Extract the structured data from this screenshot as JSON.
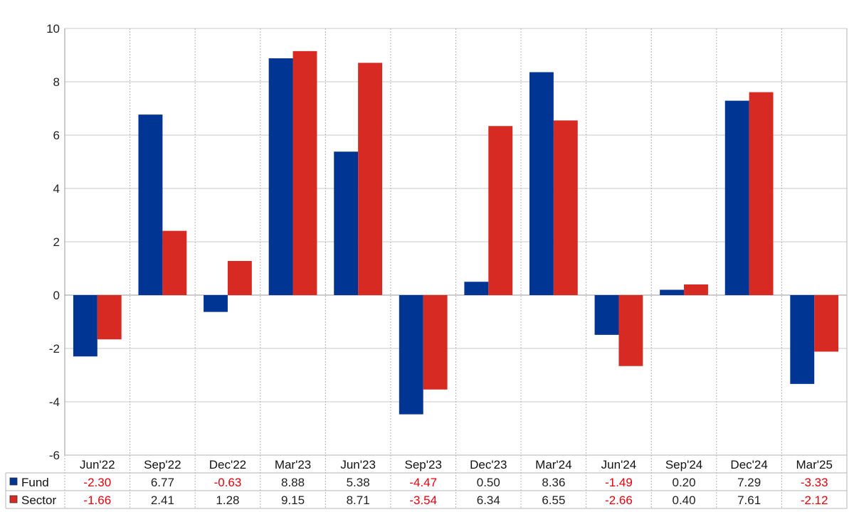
{
  "chart_data": {
    "type": "bar",
    "categories": [
      "Jun'22",
      "Sep'22",
      "Dec'22",
      "Mar'23",
      "Jun'23",
      "Sep'23",
      "Dec'23",
      "Mar'24",
      "Jun'24",
      "Sep'24",
      "Dec'24",
      "Mar'25"
    ],
    "series": [
      {
        "name": "Fund",
        "color": "#003594",
        "values": [
          -2.3,
          6.77,
          -0.63,
          8.88,
          5.38,
          -4.47,
          0.5,
          8.36,
          -1.49,
          0.2,
          7.29,
          -3.33
        ],
        "labels": [
          "-2.30",
          "6.77",
          "-0.63",
          "8.88",
          "5.38",
          "-4.47",
          "0.50",
          "8.36",
          "-1.49",
          "0.20",
          "7.29",
          "-3.33"
        ]
      },
      {
        "name": "Sector",
        "color": "#d62a23",
        "values": [
          -1.66,
          2.41,
          1.28,
          9.15,
          8.71,
          -3.54,
          6.34,
          6.55,
          -2.66,
          0.4,
          7.61,
          -2.12
        ],
        "labels": [
          "-1.66",
          "2.41",
          "1.28",
          "9.15",
          "8.71",
          "-3.54",
          "6.34",
          "6.55",
          "-2.66",
          "0.40",
          "7.61",
          "-2.12"
        ]
      }
    ],
    "ylim": [
      -6,
      10
    ],
    "yticks": [
      "-6",
      "-4",
      "-2",
      "0",
      "2",
      "4",
      "6",
      "8",
      "10"
    ],
    "title": "",
    "xlabel": "",
    "ylabel": "",
    "grid": true,
    "legend": "data-table-below",
    "negative_value_color": "#e8000b",
    "positive_value_color": "#222222"
  }
}
